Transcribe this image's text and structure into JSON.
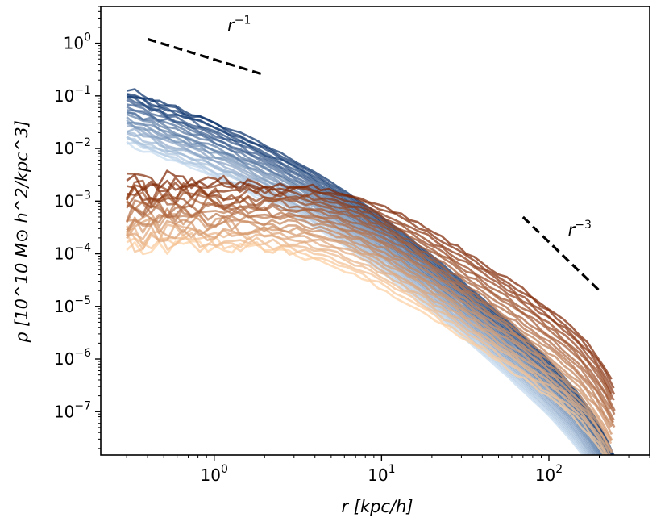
{
  "chart_data": {
    "type": "line",
    "title": "",
    "xlabel": "r [kpc/h]",
    "ylabel": "ρ [10^10 M⊙ h^2/kpc^3]",
    "xscale": "log",
    "yscale": "log",
    "xlim": [
      0.21,
      400
    ],
    "ylim": [
      1.5e-08,
      5
    ],
    "grid": false,
    "x_ticks": [
      {
        "value": 1,
        "base": "10",
        "exp": "0"
      },
      {
        "value": 10,
        "base": "10",
        "exp": "1"
      },
      {
        "value": 100,
        "base": "10",
        "exp": "2"
      }
    ],
    "y_ticks": [
      {
        "value": 1,
        "base": "10",
        "exp": "0"
      },
      {
        "value": 0.1,
        "base": "10",
        "exp": "−1"
      },
      {
        "value": 0.01,
        "base": "10",
        "exp": "−2"
      },
      {
        "value": 0.001,
        "base": "10",
        "exp": "−3"
      },
      {
        "value": 0.0001,
        "base": "10",
        "exp": "−4"
      },
      {
        "value": 1e-05,
        "base": "10",
        "exp": "−5"
      },
      {
        "value": 1e-06,
        "base": "10",
        "exp": "−6"
      },
      {
        "value": 1e-07,
        "base": "10",
        "exp": "−7"
      }
    ],
    "reference_lines": [
      {
        "name": "r^-1 slope",
        "label_base": "r",
        "label_exp": "−1",
        "x": [
          0.4,
          2
        ],
        "y": [
          1.2,
          0.25
        ],
        "label_at": [
          1.2,
          1.7
        ],
        "style": "dashed",
        "color": "#000000"
      },
      {
        "name": "r^-3 slope",
        "label_base": "r",
        "label_exp": "−3",
        "x": [
          70,
          200
        ],
        "y": [
          0.0005,
          2e-05
        ],
        "label_at": [
          130,
          0.00022
        ],
        "style": "dashed",
        "color": "#000000"
      }
    ],
    "series_groups": [
      {
        "name": "blue family (cuspy profiles)",
        "count": 26,
        "color_light": "#c6dbef",
        "color_dark": "#08306b",
        "model": "nfw",
        "rho0_range": [
          0.012,
          0.135
        ],
        "rs": 5.0,
        "x_range": [
          0.3,
          260
        ],
        "outer_cut": 200,
        "noise_amp": 0.035
      },
      {
        "name": "orange family (cored profiles)",
        "count": 24,
        "color_light": "#fdd0a2",
        "color_dark": "#7f2704",
        "model": "cored",
        "rho_core_range": [
          0.00014,
          0.0024
        ],
        "rc_range": [
          4.5,
          7.5
        ],
        "x_range": [
          0.3,
          250
        ],
        "outer_cut": 200,
        "noise_amp": 0.14
      }
    ]
  }
}
